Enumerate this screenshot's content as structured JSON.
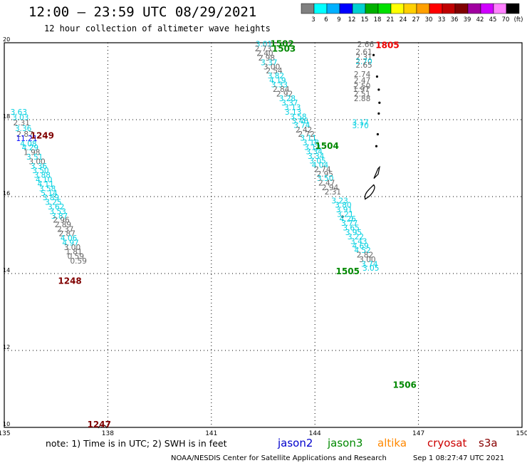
{
  "header": {
    "title": "12:00 – 23:59 UTC 08/29/2021",
    "subtitle": "12 hour collection of altimeter wave heights"
  },
  "legend": {
    "colors": [
      "#808080",
      "#00ffff",
      "#00b0ff",
      "#0000ff",
      "#00d0d0",
      "#00b000",
      "#00e000",
      "#ffff00",
      "#ffd000",
      "#ffa000",
      "#ff0000",
      "#c00000",
      "#800000",
      "#a000a0",
      "#d000ff",
      "#ff80ff",
      "#000000"
    ],
    "labels": [
      "3",
      "6",
      "9",
      "12",
      "15",
      "18",
      "21",
      "24",
      "27",
      "30",
      "33",
      "36",
      "39",
      "42",
      "45",
      "70",
      "(ft)"
    ]
  },
  "axes": {
    "lon_ticks": [
      "135",
      "138",
      "141",
      "144",
      "147",
      "150"
    ],
    "lat_ticks": [
      "20",
      "18",
      "16",
      "14",
      "12",
      "10"
    ]
  },
  "footer": {
    "note": "note: 1) Time is in UTC; 2) SWH is in feet",
    "satellites": [
      {
        "name": "jason2",
        "color": "#0000cc"
      },
      {
        "name": "jason3",
        "color": "#008800"
      },
      {
        "name": "altika",
        "color": "#ff8800"
      },
      {
        "name": "cryosat",
        "color": "#cc0000"
      },
      {
        "name": "s3a",
        "color": "#880000"
      }
    ],
    "credit": "NOAA/NESDIS Center for Satellite Applications and Research",
    "timestamp": "Sep  1 08:27:47 UTC 2021"
  },
  "map_data": {
    "lon_range": [
      135,
      150
    ],
    "lat_range": [
      10,
      20
    ],
    "colors": {
      "gray": "#666666",
      "cyan": "#00d0e0",
      "blue": "#0000ff"
    },
    "time_labels": [
      {
        "text": "1502",
        "lon": 143.05,
        "lat": 19.9,
        "color": "#008800"
      },
      {
        "text": "1503",
        "lon": 143.1,
        "lat": 19.77,
        "color": "#008800"
      },
      {
        "text": "1805",
        "lon": 146.1,
        "lat": 19.86,
        "color": "#ee0000"
      },
      {
        "text": "1249",
        "lon": 136.1,
        "lat": 17.51,
        "color": "#800000"
      },
      {
        "text": "1504",
        "lon": 144.35,
        "lat": 17.24,
        "color": "#008800"
      },
      {
        "text": "1505",
        "lon": 144.95,
        "lat": 13.98,
        "color": "#008800"
      },
      {
        "text": "1248",
        "lon": 136.9,
        "lat": 13.73,
        "color": "#800000"
      },
      {
        "text": "1506",
        "lon": 146.6,
        "lat": 11.03,
        "color": "#008800"
      },
      {
        "text": "1247",
        "lon": 137.75,
        "lat": 10.0,
        "color": "#800000"
      }
    ],
    "tracks": [
      {
        "name": "1502-1504",
        "points": [
          {
            "v": "3.01",
            "lon": 142.52,
            "lat": 19.9,
            "c": "cyan"
          },
          {
            "v": "2.73",
            "lon": 142.5,
            "lat": 19.78,
            "c": "gray"
          },
          {
            "v": "2.40",
            "lon": 142.55,
            "lat": 19.66,
            "c": "gray"
          },
          {
            "v": "2.98",
            "lon": 142.6,
            "lat": 19.54,
            "c": "gray"
          },
          {
            "v": "3.37",
            "lon": 142.67,
            "lat": 19.42,
            "c": "cyan"
          },
          {
            "v": "3.00",
            "lon": 142.75,
            "lat": 19.31,
            "c": "gray"
          },
          {
            "v": "2.54",
            "lon": 142.82,
            "lat": 19.2,
            "c": "gray"
          },
          {
            "v": "3.82",
            "lon": 142.87,
            "lat": 19.07,
            "c": "cyan"
          },
          {
            "v": "4.19",
            "lon": 142.92,
            "lat": 18.95,
            "c": "cyan"
          },
          {
            "v": "3.33",
            "lon": 142.97,
            "lat": 18.84,
            "c": "cyan"
          },
          {
            "v": "2.84",
            "lon": 143.02,
            "lat": 18.72,
            "c": "gray"
          },
          {
            "v": "2.92",
            "lon": 143.12,
            "lat": 18.6,
            "c": "gray"
          },
          {
            "v": "3.28",
            "lon": 143.2,
            "lat": 18.48,
            "c": "cyan"
          },
          {
            "v": "3.37",
            "lon": 143.27,
            "lat": 18.37,
            "c": "cyan"
          },
          {
            "v": "3.13",
            "lon": 143.35,
            "lat": 18.25,
            "c": "cyan"
          },
          {
            "v": "3.13",
            "lon": 143.37,
            "lat": 18.13,
            "c": "cyan"
          },
          {
            "v": "3.58",
            "lon": 143.52,
            "lat": 18.01,
            "c": "cyan"
          },
          {
            "v": "3.46",
            "lon": 143.57,
            "lat": 17.9,
            "c": "cyan"
          },
          {
            "v": "3.74",
            "lon": 143.62,
            "lat": 17.79,
            "c": "cyan"
          },
          {
            "v": "2.42",
            "lon": 143.68,
            "lat": 17.67,
            "c": "gray"
          },
          {
            "v": "2.72",
            "lon": 143.75,
            "lat": 17.56,
            "c": "gray"
          }
        ]
      },
      {
        "name": "1505-1506",
        "points": [
          {
            "v": "3.11",
            "lon": 143.81,
            "lat": 17.45,
            "c": "cyan"
          },
          {
            "v": "3.18",
            "lon": 143.88,
            "lat": 17.33,
            "c": "cyan"
          },
          {
            "v": "3.12",
            "lon": 143.93,
            "lat": 17.21,
            "c": "cyan"
          },
          {
            "v": "3.34",
            "lon": 143.98,
            "lat": 17.1,
            "c": "cyan"
          },
          {
            "v": "3.34",
            "lon": 144.03,
            "lat": 16.98,
            "c": "cyan"
          },
          {
            "v": "3.05",
            "lon": 144.08,
            "lat": 16.86,
            "c": "cyan"
          },
          {
            "v": "4.04",
            "lon": 144.15,
            "lat": 16.75,
            "c": "cyan"
          },
          {
            "v": "2.74",
            "lon": 144.22,
            "lat": 16.64,
            "c": "gray"
          },
          {
            "v": "2.95",
            "lon": 144.29,
            "lat": 16.52,
            "c": "gray"
          },
          {
            "v": "3.50",
            "lon": 144.3,
            "lat": 16.41,
            "c": "cyan"
          },
          {
            "v": "2.47",
            "lon": 144.34,
            "lat": 16.29,
            "c": "gray"
          },
          {
            "v": "2.94",
            "lon": 144.44,
            "lat": 16.17,
            "c": "gray"
          },
          {
            "v": "2.31",
            "lon": 144.52,
            "lat": 16.06,
            "c": "gray"
          },
          {
            "v": "3.23",
            "lon": 144.72,
            "lat": 15.82,
            "c": "cyan"
          },
          {
            "v": "3.80",
            "lon": 144.82,
            "lat": 15.71,
            "c": "cyan"
          },
          {
            "v": "3.91",
            "lon": 144.85,
            "lat": 15.59,
            "c": "cyan"
          },
          {
            "v": "3.21",
            "lon": 144.88,
            "lat": 15.47,
            "c": "cyan"
          },
          {
            "v": "4.26",
            "lon": 144.95,
            "lat": 15.35,
            "c": "cyan"
          },
          {
            "v": "3.77",
            "lon": 145.0,
            "lat": 15.24,
            "c": "cyan"
          },
          {
            "v": "3.65",
            "lon": 145.05,
            "lat": 15.12,
            "c": "cyan"
          },
          {
            "v": "3.95",
            "lon": 145.12,
            "lat": 15.0,
            "c": "cyan"
          },
          {
            "v": "3.22",
            "lon": 145.18,
            "lat": 14.89,
            "c": "cyan"
          },
          {
            "v": "3.43",
            "lon": 145.27,
            "lat": 14.77,
            "c": "cyan"
          },
          {
            "v": "4.69",
            "lon": 145.32,
            "lat": 14.65,
            "c": "cyan"
          },
          {
            "v": "4.52",
            "lon": 145.38,
            "lat": 14.54,
            "c": "cyan"
          },
          {
            "v": "2.82",
            "lon": 145.45,
            "lat": 14.42,
            "c": "gray"
          },
          {
            "v": "3.00",
            "lon": 145.52,
            "lat": 14.3,
            "c": "gray"
          },
          {
            "v": "3.74",
            "lon": 145.58,
            "lat": 14.18,
            "c": "cyan"
          },
          {
            "v": "3.05",
            "lon": 145.62,
            "lat": 14.07,
            "c": "cyan"
          }
        ]
      },
      {
        "name": "1805",
        "points": [
          {
            "v": "2.66",
            "lon": 145.47,
            "lat": 19.89,
            "c": "gray"
          },
          {
            "v": "2.61",
            "lon": 145.42,
            "lat": 19.69,
            "c": "gray"
          },
          {
            "v": "2.31",
            "lon": 145.42,
            "lat": 19.56,
            "c": "gray"
          },
          {
            "v": "2.70",
            "lon": 145.42,
            "lat": 19.44,
            "c": "cyan"
          },
          {
            "v": "2.65",
            "lon": 145.42,
            "lat": 19.35,
            "c": "gray"
          },
          {
            "v": "2.74",
            "lon": 145.37,
            "lat": 19.11,
            "c": "gray"
          },
          {
            "v": "2.47",
            "lon": 145.37,
            "lat": 18.95,
            "c": "gray"
          },
          {
            "v": "2.50",
            "lon": 145.37,
            "lat": 18.81,
            "c": "gray"
          },
          {
            "v": "1.97",
            "lon": 145.34,
            "lat": 18.72,
            "c": "gray"
          },
          {
            "v": "2.51",
            "lon": 145.37,
            "lat": 18.6,
            "c": "gray"
          },
          {
            "v": "2.88",
            "lon": 145.37,
            "lat": 18.48,
            "c": "gray"
          },
          {
            "v": "3.17",
            "lon": 145.32,
            "lat": 17.86,
            "c": "cyan"
          },
          {
            "v": "3.70",
            "lon": 145.32,
            "lat": 17.78,
            "c": "cyan"
          }
        ]
      },
      {
        "name": "1247-1249",
        "points": [
          {
            "v": "3.63",
            "lon": 135.42,
            "lat": 18.13,
            "c": "cyan"
          },
          {
            "v": "3.03",
            "lon": 135.47,
            "lat": 17.99,
            "c": "cyan"
          },
          {
            "v": "2.31",
            "lon": 135.5,
            "lat": 17.85,
            "c": "gray"
          },
          {
            "v": "3.36",
            "lon": 135.55,
            "lat": 17.7,
            "c": "cyan"
          },
          {
            "v": "2.87",
            "lon": 135.6,
            "lat": 17.56,
            "c": "gray"
          },
          {
            "v": "11.21",
            "lon": 135.65,
            "lat": 17.44,
            "c": "blue"
          },
          {
            "v": "4.08",
            "lon": 135.7,
            "lat": 17.31,
            "c": "cyan"
          },
          {
            "v": "4.29",
            "lon": 135.75,
            "lat": 17.2,
            "c": "cyan"
          },
          {
            "v": "1.98",
            "lon": 135.8,
            "lat": 17.08,
            "c": "gray"
          },
          {
            "v": "3.51",
            "lon": 135.88,
            "lat": 16.96,
            "c": "cyan"
          },
          {
            "v": "3.00",
            "lon": 135.95,
            "lat": 16.84,
            "c": "gray"
          },
          {
            "v": "3.36",
            "lon": 136.0,
            "lat": 16.72,
            "c": "cyan"
          },
          {
            "v": "3.50",
            "lon": 136.05,
            "lat": 16.61,
            "c": "cyan"
          },
          {
            "v": "3.88",
            "lon": 136.1,
            "lat": 16.49,
            "c": "cyan"
          },
          {
            "v": "4.10",
            "lon": 136.15,
            "lat": 16.37,
            "c": "cyan"
          },
          {
            "v": "4.11",
            "lon": 136.2,
            "lat": 16.26,
            "c": "cyan"
          },
          {
            "v": "3.58",
            "lon": 136.25,
            "lat": 16.14,
            "c": "cyan"
          },
          {
            "v": "5.14",
            "lon": 136.3,
            "lat": 16.02,
            "c": "cyan"
          },
          {
            "v": "3.89",
            "lon": 136.35,
            "lat": 15.91,
            "c": "cyan"
          },
          {
            "v": "3.25",
            "lon": 136.42,
            "lat": 15.79,
            "c": "cyan"
          },
          {
            "v": "3.62",
            "lon": 136.5,
            "lat": 15.67,
            "c": "cyan"
          },
          {
            "v": "3.53",
            "lon": 136.55,
            "lat": 15.55,
            "c": "cyan"
          },
          {
            "v": "3.87",
            "lon": 136.6,
            "lat": 15.43,
            "c": "cyan"
          },
          {
            "v": "2.96",
            "lon": 136.65,
            "lat": 15.32,
            "c": "gray"
          },
          {
            "v": "2.89",
            "lon": 136.7,
            "lat": 15.2,
            "c": "gray"
          },
          {
            "v": "2.37",
            "lon": 136.77,
            "lat": 15.08,
            "c": "gray"
          },
          {
            "v": "2.87",
            "lon": 136.82,
            "lat": 14.97,
            "c": "gray"
          },
          {
            "v": "4.06",
            "lon": 136.87,
            "lat": 14.85,
            "c": "cyan"
          },
          {
            "v": "4.97",
            "lon": 136.92,
            "lat": 14.73,
            "c": "cyan"
          },
          {
            "v": "3.00",
            "lon": 136.97,
            "lat": 14.61,
            "c": "gray"
          },
          {
            "v": "1.81",
            "lon": 137.02,
            "lat": 14.5,
            "c": "gray"
          },
          {
            "v": "0.59",
            "lon": 137.07,
            "lat": 14.38,
            "c": "gray"
          },
          {
            "v": "0.59",
            "lon": 137.15,
            "lat": 14.26,
            "c": "gray"
          }
        ]
      }
    ],
    "land": [
      {
        "lon": 145.7,
        "lat": 19.68
      },
      {
        "lon": 145.8,
        "lat": 19.12
      },
      {
        "lon": 145.85,
        "lat": 18.78
      },
      {
        "lon": 145.87,
        "lat": 18.44
      },
      {
        "lon": 145.85,
        "lat": 18.16
      },
      {
        "lon": 145.82,
        "lat": 17.62
      },
      {
        "lon": 145.78,
        "lat": 17.31
      },
      {
        "lon": 145.77,
        "lat": 16.62
      },
      {
        "lon": 145.62,
        "lat": 16.12
      },
      {
        "lon": 144.8,
        "lat": 15.48
      },
      {
        "lon": 137.85,
        "lat": 9.98
      }
    ]
  }
}
